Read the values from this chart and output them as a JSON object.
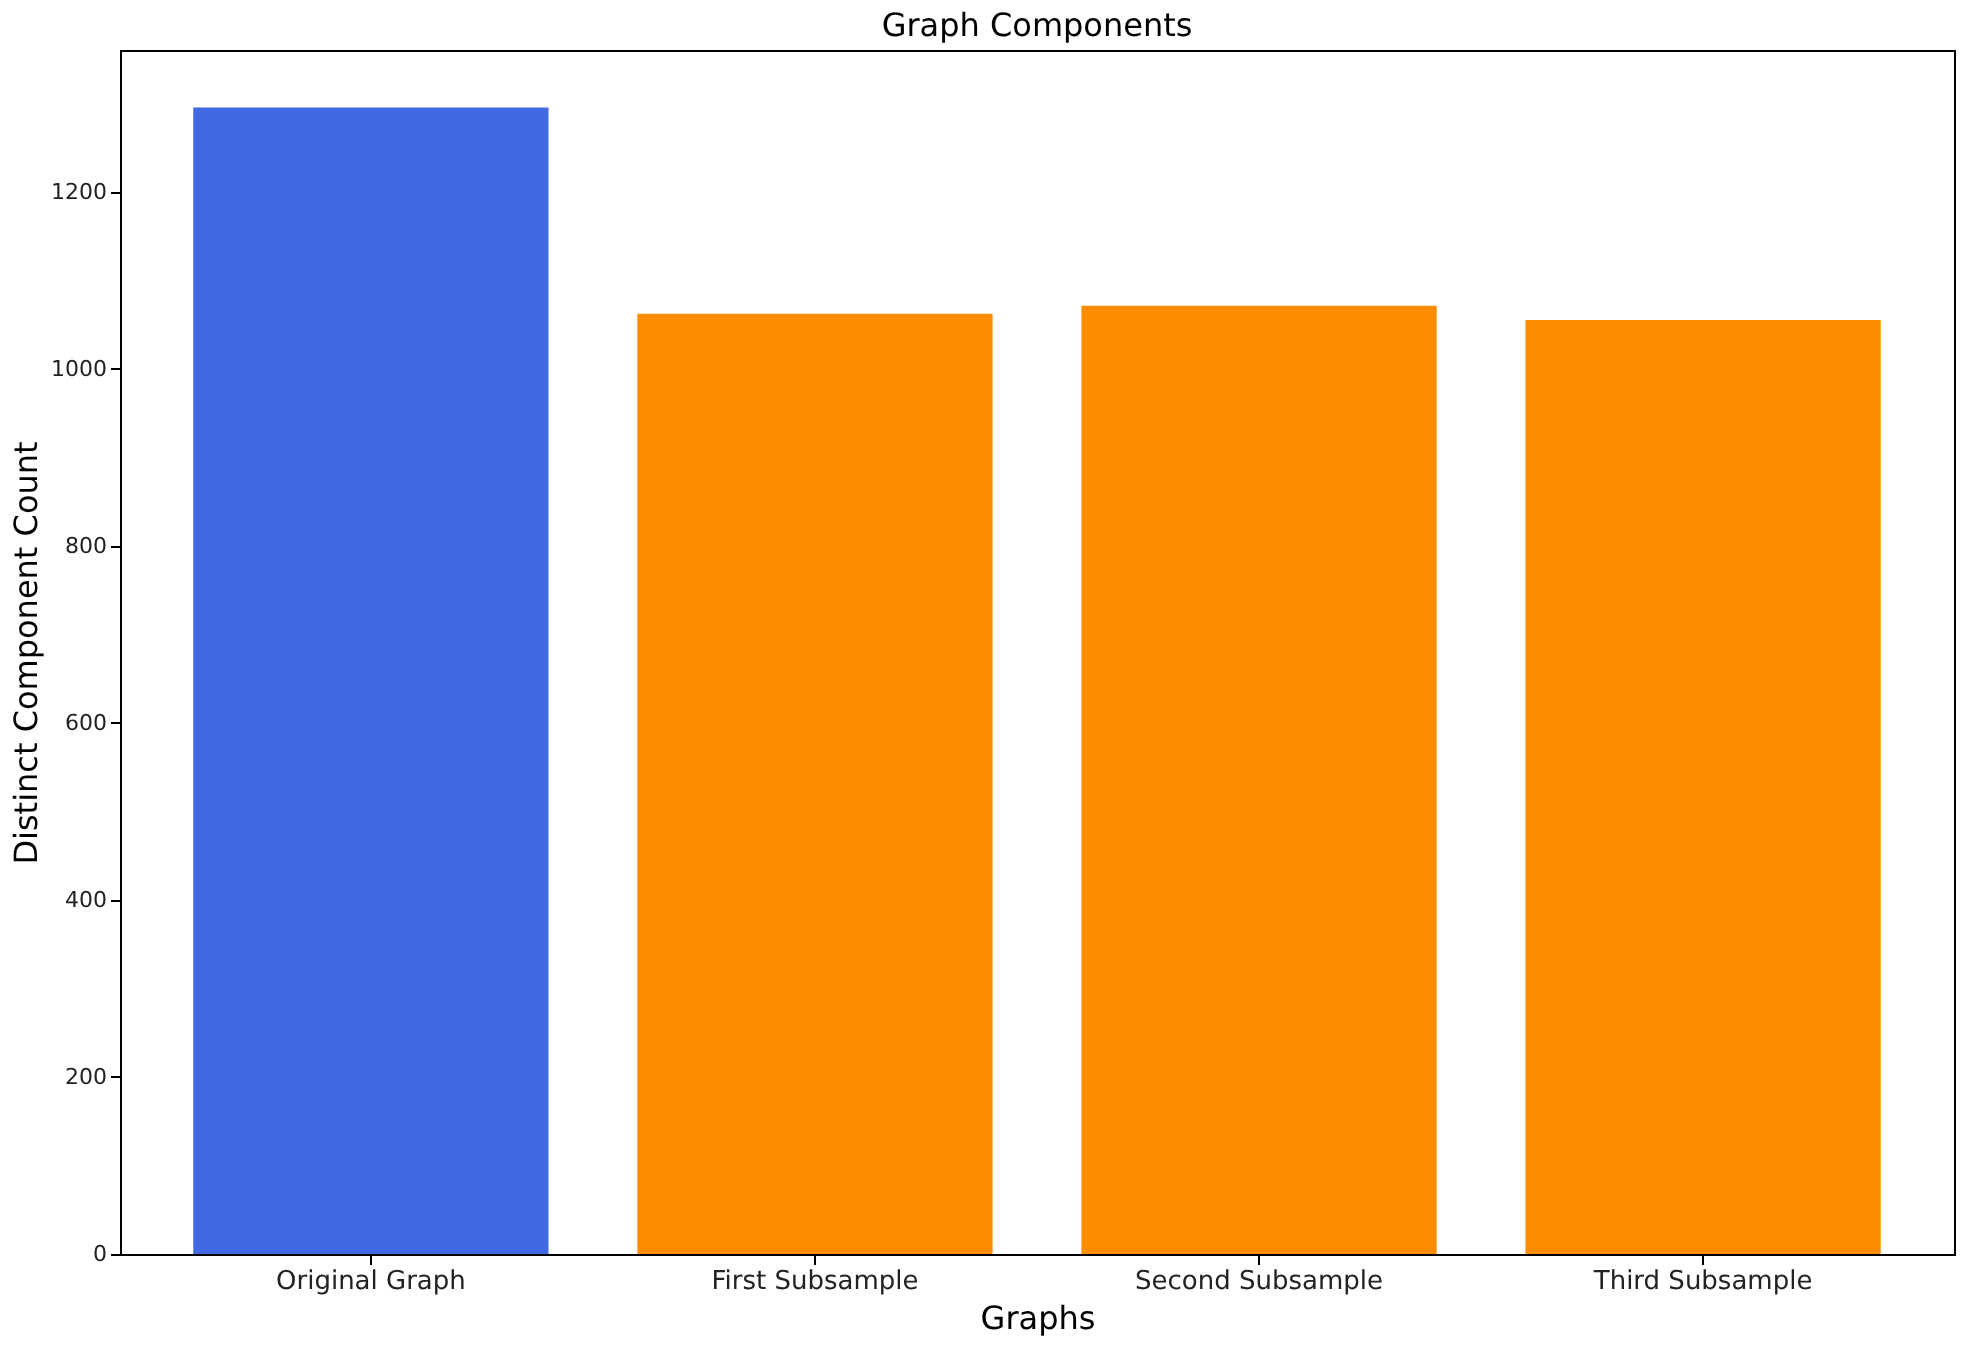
{
  "chart_data": {
    "type": "bar",
    "title": "Graph Components",
    "xlabel": "Graphs",
    "ylabel": "Distinct Component Count",
    "categories": [
      "Original Graph",
      "First Subsample",
      "Second Subsample",
      "Third Subsample"
    ],
    "values": [
      1295,
      1062,
      1071,
      1055
    ],
    "colors": [
      "#4169e1",
      "#ff8c00",
      "#ff8c00",
      "#ff8c00"
    ],
    "ylim": [
      0,
      1360
    ],
    "yticks": [
      0,
      200,
      400,
      600,
      800,
      1000,
      1200
    ],
    "grid": false,
    "legend": false
  }
}
